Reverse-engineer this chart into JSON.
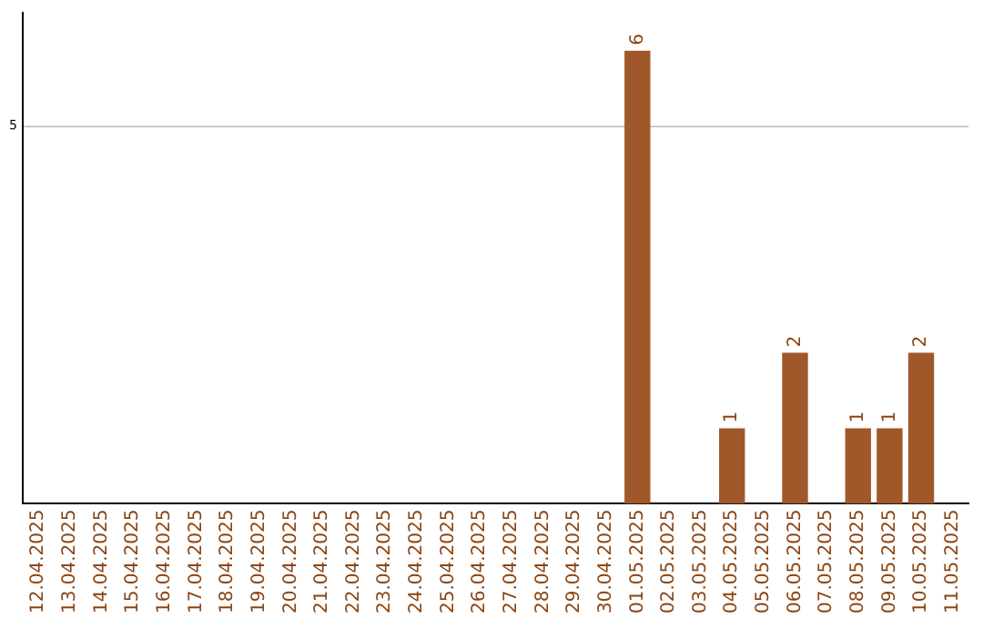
{
  "chart_data": {
    "type": "bar",
    "categories": [
      "12.04.2025",
      "13.04.2025",
      "14.04.2025",
      "15.04.2025",
      "16.04.2025",
      "17.04.2025",
      "18.04.2025",
      "19.04.2025",
      "20.04.2025",
      "21.04.2025",
      "22.04.2025",
      "23.04.2025",
      "24.04.2025",
      "25.04.2025",
      "26.04.2025",
      "27.04.2025",
      "28.04.2025",
      "29.04.2025",
      "30.04.2025",
      "01.05.2025",
      "02.05.2025",
      "03.05.2025",
      "04.05.2025",
      "05.05.2025",
      "06.05.2025",
      "07.05.2025",
      "08.05.2025",
      "09.05.2025",
      "10.05.2025",
      "11.05.2025"
    ],
    "values": [
      null,
      null,
      null,
      null,
      null,
      null,
      null,
      null,
      null,
      null,
      null,
      null,
      null,
      null,
      null,
      null,
      null,
      null,
      null,
      6,
      null,
      null,
      1,
      null,
      2,
      null,
      1,
      1,
      2,
      null
    ],
    "color": "#a0582a",
    "ylim": [
      0,
      6.5
    ],
    "yticks": [
      5
    ],
    "grid": "y",
    "data_labels": true
  }
}
